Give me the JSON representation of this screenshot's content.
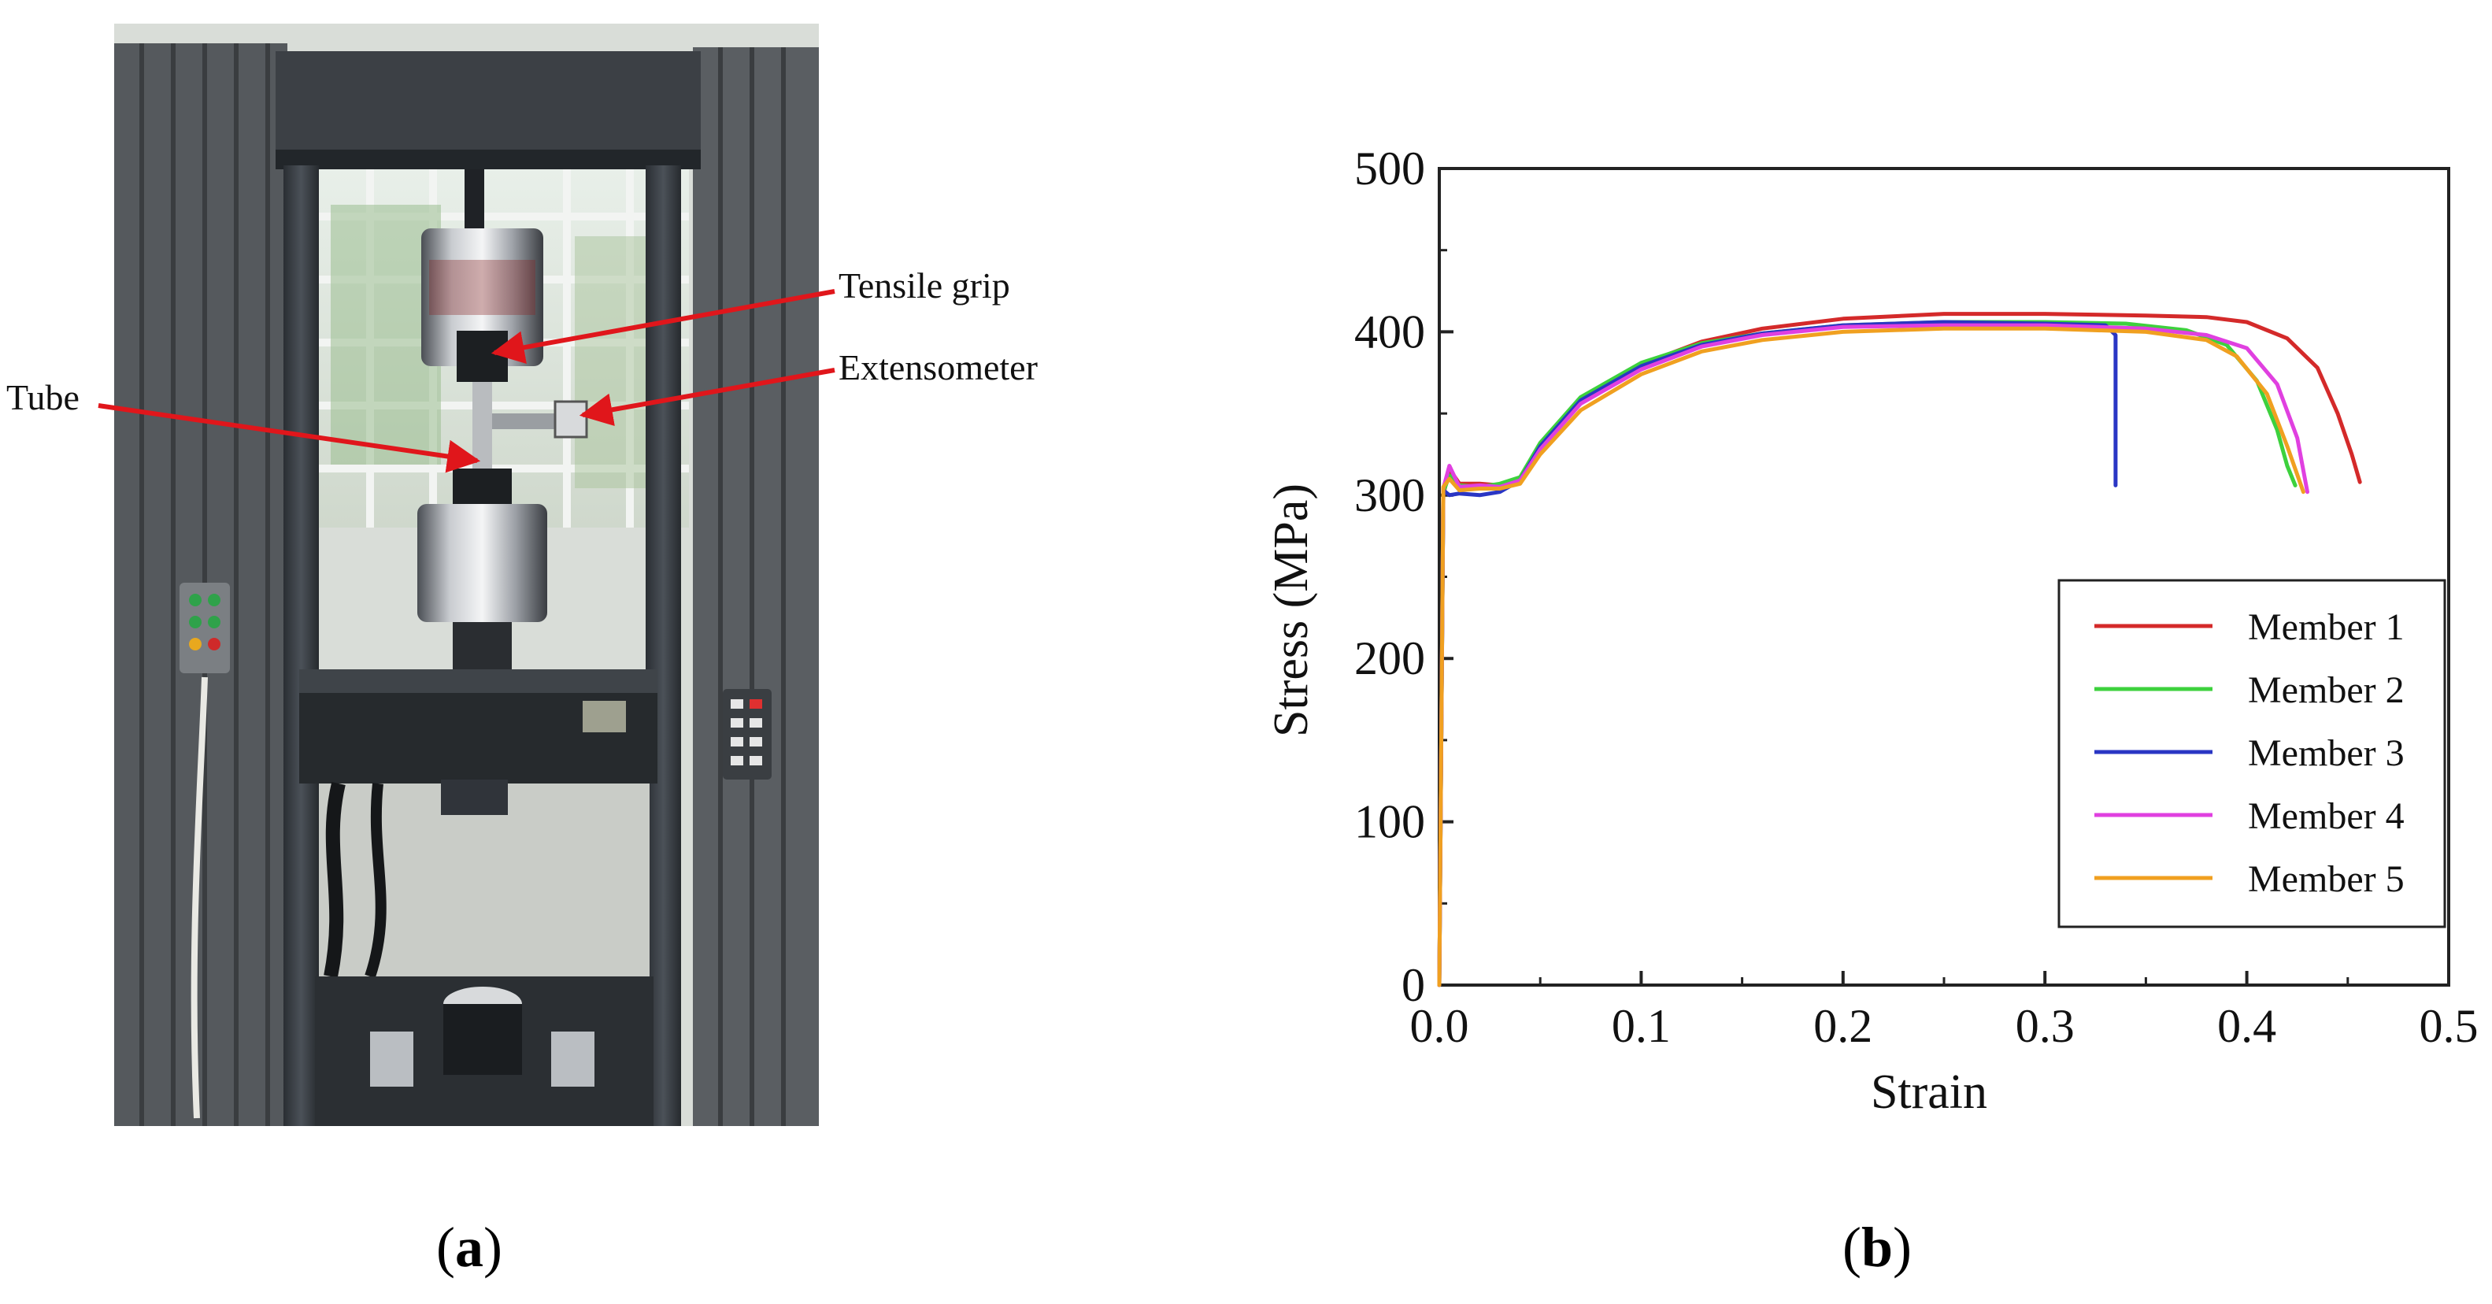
{
  "panel_a": {
    "annotations": {
      "tensile_grip": "Tensile grip",
      "extensometer": "Extensometer",
      "tube": "Tube"
    },
    "caption_open": "(",
    "caption_letter": "a",
    "caption_close": ")"
  },
  "panel_b": {
    "caption_open": "(",
    "caption_letter": "b",
    "caption_close": ")"
  },
  "chart_data": {
    "type": "line",
    "xlabel": "Strain",
    "ylabel": "Stress (MPa)",
    "xlim": [
      0,
      0.5
    ],
    "ylim": [
      0,
      500
    ],
    "xticks": [
      "0.0",
      "0.1",
      "0.2",
      "0.3",
      "0.4",
      "0.5"
    ],
    "yticks": [
      "0",
      "100",
      "200",
      "300",
      "400",
      "500"
    ],
    "grid": false,
    "legend_position": "bottom-right",
    "series": [
      {
        "name": "Member 1",
        "color": "#d42a2a",
        "x": [
          0.0,
          0.002,
          0.005,
          0.01,
          0.02,
          0.03,
          0.04,
          0.05,
          0.07,
          0.1,
          0.13,
          0.16,
          0.2,
          0.25,
          0.3,
          0.35,
          0.38,
          0.4,
          0.42,
          0.435,
          0.445,
          0.452,
          0.456
        ],
        "y": [
          0,
          300,
          316,
          307,
          307,
          306,
          310,
          330,
          358,
          380,
          394,
          402,
          408,
          411,
          411,
          410,
          409,
          406,
          396,
          378,
          350,
          325,
          308
        ]
      },
      {
        "name": "Member 2",
        "color": "#3dd13d",
        "x": [
          0.0,
          0.002,
          0.005,
          0.01,
          0.02,
          0.03,
          0.04,
          0.05,
          0.07,
          0.1,
          0.13,
          0.16,
          0.2,
          0.25,
          0.3,
          0.34,
          0.37,
          0.39,
          0.405,
          0.415,
          0.42,
          0.424
        ],
        "y": [
          0,
          302,
          312,
          306,
          305,
          307,
          311,
          332,
          360,
          381,
          393,
          399,
          404,
          406,
          406,
          405,
          401,
          392,
          370,
          340,
          318,
          306
        ]
      },
      {
        "name": "Member 3",
        "color": "#2a36c4",
        "x": [
          0.0,
          0.002,
          0.005,
          0.01,
          0.02,
          0.03,
          0.04,
          0.05,
          0.07,
          0.1,
          0.13,
          0.16,
          0.2,
          0.25,
          0.3,
          0.33,
          0.335,
          0.335
        ],
        "y": [
          0,
          303,
          300,
          301,
          300,
          302,
          309,
          330,
          358,
          379,
          392,
          399,
          404,
          406,
          405,
          404,
          398,
          306
        ]
      },
      {
        "name": "Member 4",
        "color": "#e040e0",
        "x": [
          0.0,
          0.002,
          0.005,
          0.01,
          0.02,
          0.03,
          0.04,
          0.05,
          0.07,
          0.1,
          0.13,
          0.16,
          0.2,
          0.25,
          0.3,
          0.35,
          0.38,
          0.4,
          0.415,
          0.425,
          0.43
        ],
        "y": [
          0,
          304,
          318,
          305,
          306,
          305,
          309,
          328,
          356,
          377,
          391,
          398,
          403,
          404,
          404,
          402,
          398,
          390,
          368,
          335,
          302
        ]
      },
      {
        "name": "Member 5",
        "color": "#f0a020",
        "x": [
          0.0,
          0.002,
          0.005,
          0.01,
          0.02,
          0.03,
          0.04,
          0.05,
          0.07,
          0.1,
          0.13,
          0.16,
          0.2,
          0.25,
          0.3,
          0.35,
          0.38,
          0.395,
          0.41,
          0.42,
          0.428
        ],
        "y": [
          0,
          305,
          310,
          303,
          304,
          304,
          307,
          325,
          352,
          374,
          388,
          395,
          400,
          402,
          402,
          400,
          395,
          385,
          362,
          330,
          302
        ]
      }
    ]
  }
}
